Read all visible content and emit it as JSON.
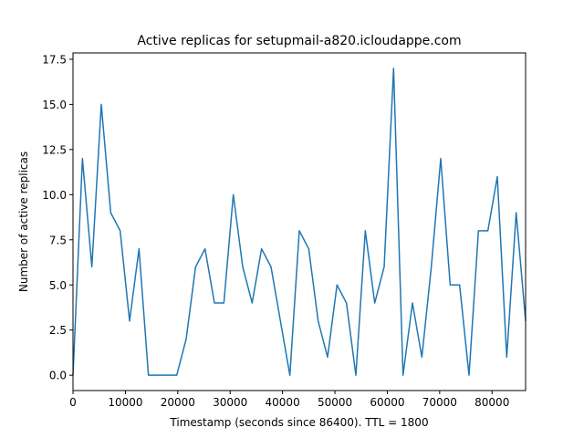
{
  "colors": {
    "line": "#1f77b4",
    "axes": "#000000",
    "background": "#ffffff"
  },
  "chart_data": {
    "type": "line",
    "title": "Active replicas for setupmail-a820.icloudappe.com",
    "xlabel": "Timestamp (seconds since 86400). TTL = 1800",
    "ylabel": "Number of active replicas",
    "xlim": [
      0,
      86400
    ],
    "ylim": [
      -0.85,
      17.85
    ],
    "grid": false,
    "legend": "none",
    "xticks": [
      0,
      10000,
      20000,
      30000,
      40000,
      50000,
      60000,
      70000,
      80000
    ],
    "xtick_labels": [
      "0",
      "10000",
      "20000",
      "30000",
      "40000",
      "50000",
      "60000",
      "70000",
      "80000"
    ],
    "yticks": [
      0,
      2.5,
      5,
      7.5,
      10,
      12.5,
      15,
      17.5
    ],
    "ytick_labels": [
      "0.0",
      "2.5",
      "5.0",
      "7.5",
      "10.0",
      "12.5",
      "15.0",
      "17.5"
    ],
    "series": [
      {
        "x": [
          0,
          1800,
          3600,
          5400,
          7200,
          9000,
          10800,
          12600,
          14400,
          16200,
          18000,
          19800,
          21600,
          23400,
          25200,
          27000,
          28800,
          30600,
          32400,
          34200,
          36000,
          37800,
          39600,
          41400,
          43200,
          45000,
          46800,
          48600,
          50400,
          52200,
          54000,
          55800,
          57600,
          59400,
          61200,
          63000,
          64800,
          66600,
          68400,
          70200,
          72000,
          73800,
          75600,
          77400,
          79200,
          81000,
          82800,
          84600,
          86400
        ],
        "y": [
          0,
          12,
          6,
          15,
          9,
          8,
          3,
          7,
          0,
          0,
          0,
          0,
          2,
          6,
          7,
          4,
          4,
          10,
          6,
          4,
          7,
          6,
          3,
          0,
          8,
          7,
          3,
          1,
          5,
          4,
          0,
          8,
          4,
          6,
          17,
          0,
          4,
          1,
          6,
          12,
          5,
          5,
          0,
          8,
          8,
          11,
          1,
          9,
          3
        ]
      }
    ]
  }
}
